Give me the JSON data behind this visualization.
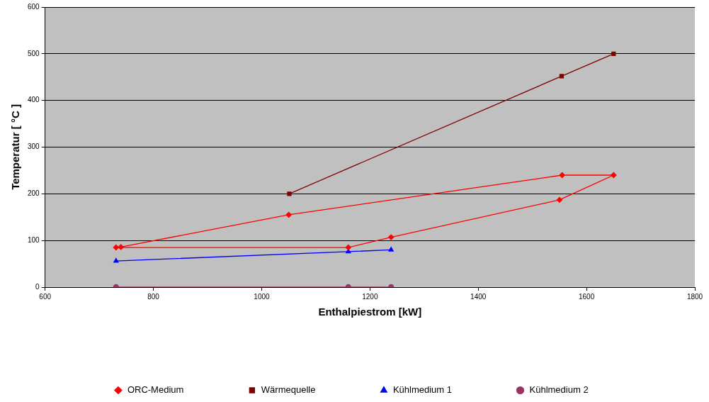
{
  "chart_data": {
    "type": "line",
    "xlabel": "Enthalpiestrom [kW]",
    "ylabel": "Temperatur [ °C ]",
    "xlim": [
      600,
      1800
    ],
    "xticks": [
      600,
      800,
      1000,
      1200,
      1400,
      1600,
      1800
    ],
    "ylim": [
      0,
      600
    ],
    "yticks": [
      0,
      100,
      200,
      300,
      400,
      500,
      600
    ],
    "grid": "y",
    "legend": "bottom",
    "line_style": "solid",
    "series": [
      {
        "name": "ORC-Medium",
        "color": "#ff0000",
        "marker": "diamond",
        "x": [
          731,
          1160,
          1239,
          1550,
          1650,
          1555,
          1050,
          740
        ],
        "values": [
          85,
          85,
          107,
          187,
          240,
          240,
          155,
          86
        ]
      },
      {
        "name": "Wärmequelle",
        "color": "#800000",
        "marker": "square",
        "x": [
          1051,
          1554,
          1650
        ],
        "values": [
          200,
          452,
          500
        ]
      },
      {
        "name": "Kühlmedium 1",
        "color": "#0000ff",
        "marker": "triangle",
        "x": [
          731,
          1160,
          1239
        ],
        "values": [
          56,
          76,
          80
        ]
      },
      {
        "name": "Kühlmedium 2",
        "color": "#993366",
        "marker": "circle",
        "x": [
          731,
          1160,
          1239
        ],
        "values": [
          0,
          0,
          0
        ]
      }
    ]
  }
}
